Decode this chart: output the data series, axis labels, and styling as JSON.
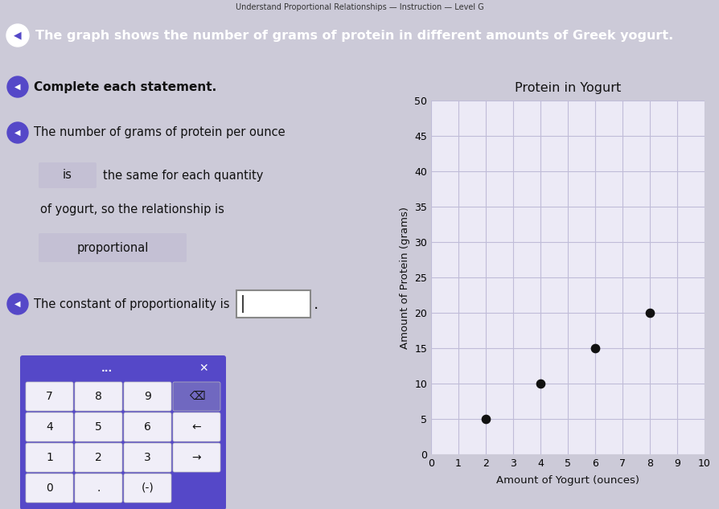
{
  "page_title": "Understand Proportional Relationships — Instruction — Level G",
  "header_text": "The graph shows the number of grams of protein in different amounts of Greek yogurt.",
  "header_bg": "#5548c8",
  "header_text_color": "#ffffff",
  "bg_color": "#cccad8",
  "left_bg": "#d8d6e4",
  "chart_outer_bg": "#e8e6f0",
  "chart_inner_bg": "#eceaf6",
  "chart_title": "Protein in Yogurt",
  "chart_xlabel": "Amount of Yogurt (ounces)",
  "chart_ylabel": "Amount of Protein (grams)",
  "x_data": [
    2,
    4,
    6,
    8
  ],
  "y_data": [
    5,
    10,
    15,
    20
  ],
  "x_lim": [
    0,
    10
  ],
  "y_lim": [
    0,
    50
  ],
  "x_ticks": [
    0,
    1,
    2,
    3,
    4,
    5,
    6,
    7,
    8,
    9,
    10
  ],
  "y_ticks": [
    0,
    5,
    10,
    15,
    20,
    25,
    30,
    35,
    40,
    45,
    50
  ],
  "dot_color": "#111111",
  "dot_size": 55,
  "grid_color": "#c0bcd8",
  "text_color": "#111111",
  "speaker_color": "#5548c8",
  "filled_box_bg": "#c4c0d4",
  "empty_box_bg": "#ffffff",
  "calc_bg": "#5548c8",
  "calc_button_bg": "#f0eef8",
  "calc_button_text": "#111111",
  "calc_buttons": [
    [
      "7",
      "8",
      "9",
      "⌫"
    ],
    [
      "4",
      "5",
      "6",
      "←"
    ],
    [
      "1",
      "2",
      "3",
      "→"
    ],
    [
      "0",
      ".",
      "(-)",
      ""
    ]
  ],
  "section1_label": "Complete each statement.",
  "section2_label": "The number of grams of protein per ounce",
  "answer_box1_text": "is",
  "answer_text1": "the same for each quantity",
  "line3": "of yogurt, so the relationship is",
  "answer_box2_text": "proportional",
  "section3_label": "The constant of proportionality is"
}
